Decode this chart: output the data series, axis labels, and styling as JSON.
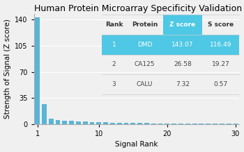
{
  "title": "Human Protein Microarray Specificity Validation",
  "xlabel": "Signal Rank",
  "ylabel": "Strength of Signal (Z score)",
  "bar_color": "#5ab4d6",
  "xlim": [
    0.5,
    30.5
  ],
  "ylim": [
    0,
    148
  ],
  "yticks": [
    0,
    35,
    70,
    105,
    140
  ],
  "xticks": [
    1,
    10,
    20,
    30
  ],
  "bar_values": [
    143.07,
    26.58,
    7.32,
    5.5,
    4.8,
    4.2,
    3.8,
    3.2,
    2.8,
    2.5,
    2.2,
    2.0,
    1.8,
    1.6,
    1.5,
    1.4,
    1.3,
    1.2,
    1.1,
    1.0,
    0.9,
    0.85,
    0.8,
    0.75,
    0.7,
    0.65,
    0.6,
    0.55,
    0.5,
    0.45
  ],
  "table_headers": [
    "Rank",
    "Protein",
    "Z score",
    "S score"
  ],
  "table_rows": [
    [
      "1",
      "DMD",
      "143.07",
      "116.49"
    ],
    [
      "2",
      "CA125",
      "26.58",
      "19.27"
    ],
    [
      "3",
      "CALU",
      "7.32",
      "0.57"
    ]
  ],
  "highlight_bg": "#4ec8e4",
  "header_zscore_bg": "#4ec8e4",
  "table_bg": "#f0f0f0",
  "bg_color": "#f0f0f0",
  "title_fontsize": 9,
  "axis_label_fontsize": 7.5,
  "tick_fontsize": 7,
  "table_fontsize": 6.5
}
